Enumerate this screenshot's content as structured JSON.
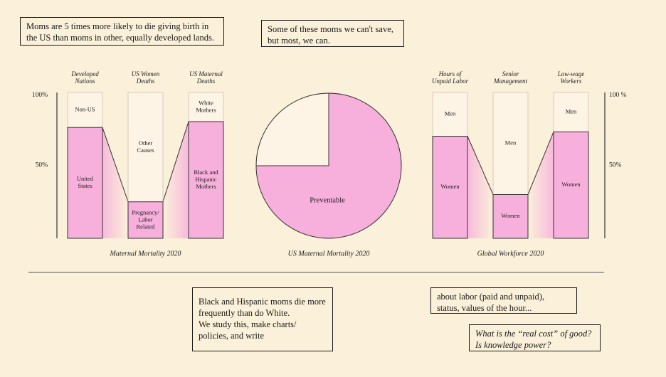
{
  "notes": {
    "top_left": "Moms are 5 times more likely to die giving birth in\nthe US than moms in other, equally developed lands.",
    "top_mid": "Some of these moms we can't save,\nbut most, we can.",
    "bottom_mid": "Black and Hispanic moms die more\nfrequently than do White.\nWe study this, make charts/\npolicies, and write",
    "bottom_right": "about labor (paid and unpaid),\nstatus, values of the hour...",
    "bottom_right_italic": "What is the “real cost” of good?\nIs knowledge power?"
  },
  "colors": {
    "background": "#fbf0d9",
    "pink": "#f7b0dc",
    "cream": "#fdf4e6",
    "border": "#1a1a1a"
  },
  "chart_data": [
    {
      "type": "bar",
      "subtype": "stacked-100",
      "title": "Maternal Mortality 2020",
      "y_ticks": [
        "100%",
        "50%"
      ],
      "ylim": [
        0,
        100
      ],
      "categories": [
        "Developed\nNations",
        "US Women\nDeaths",
        "US Maternal\nDeaths"
      ],
      "series": [
        {
          "values": [
            76,
            25,
            80
          ],
          "labels": [
            "United\nStates",
            "Pregnancy/\nLabor\nRelated",
            "Black and\nHispanic\nMothers"
          ],
          "color": "#f7b0dc"
        },
        {
          "values": [
            24,
            75,
            20
          ],
          "labels": [
            "Non-US",
            "Other\nCauses",
            "White\nMothers"
          ],
          "color": "#fdf4e6"
        }
      ]
    },
    {
      "type": "pie",
      "title": "US Maternal Mortality 2020",
      "slices": [
        {
          "label": "Preventable",
          "value": 75,
          "color": "#f7b0dc"
        },
        {
          "label": "",
          "value": 25,
          "color": "#fdf4e6"
        }
      ]
    },
    {
      "type": "bar",
      "subtype": "stacked-100",
      "title": "Global Workforce 2020",
      "y_ticks": [
        "100 %",
        "50%"
      ],
      "ylim": [
        0,
        100
      ],
      "categories": [
        "Hours of\nUnpaid Labor",
        "Senior\nManagement",
        "Low-wage\nWorkers"
      ],
      "series": [
        {
          "values": [
            70,
            30,
            73
          ],
          "labels": [
            "Women",
            "Women",
            "Women"
          ],
          "color": "#f7b0dc"
        },
        {
          "values": [
            30,
            70,
            27
          ],
          "labels": [
            "Men",
            "Men",
            "Men"
          ],
          "color": "#fdf4e6"
        }
      ]
    }
  ]
}
